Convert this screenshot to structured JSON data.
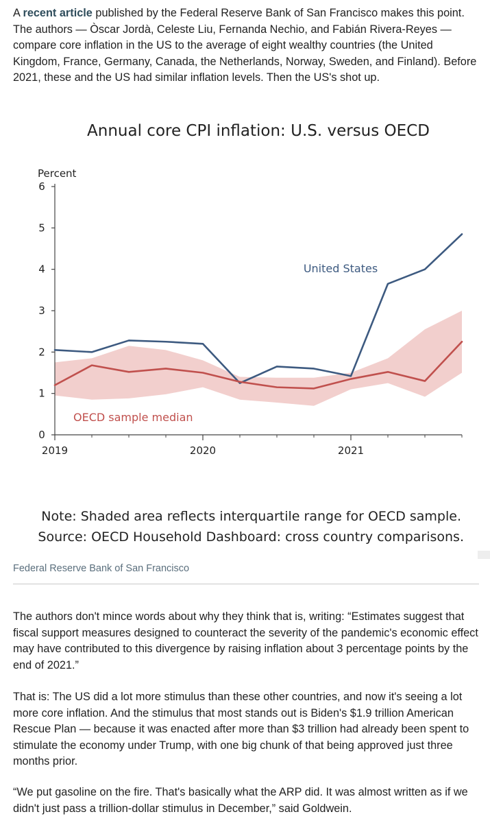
{
  "article": {
    "intro_prefix": "A ",
    "intro_link": "recent article",
    "intro_rest": " published by the Federal Reserve Bank of San Francisco makes this point. The authors — Òscar Jordà, Celeste Liu, Fernanda Nechio, and Fabián Rivera-Reyes — compare core inflation in the US to the average of eight wealthy countries (the United Kingdom, France, Germany, Canada, the Netherlands, Norway, Sweden, and Finland). Before 2021, these and the US had similar inflation levels. Then the US's shot up.",
    "para2": "The authors don't mince words about why they think that is, writing: “Estimates suggest that fiscal support measures designed to counteract the severity of the pandemic's economic effect may have contributed to this divergence by raising inflation about 3 percentage points by the end of 2021.”",
    "para3": "That is: The US did a lot more stimulus than these other countries, and now it's seeing a lot more core inflation. And the stimulus that most stands out is Biden's $1.9 trillion American Rescue Plan — because it was enacted after more than $3 trillion had already been spent to stimulate the economy under Trump, with one big chunk of that being approved just three months prior.",
    "para4": "“We put gasoline on the fire. That's basically what the ARP did. It was almost written as if we didn't just pass a trillion-dollar stimulus in December,” said Goldwein."
  },
  "figure": {
    "note": "Note: Shaded area reflects interquartile range for OECD sample.",
    "source": "Source: OECD Household Dashboard: cross country comparisons.",
    "credit": "Federal Reserve Bank of San Francisco"
  },
  "colors": {
    "us_line": "#3d5a80",
    "oecd_line": "#c0504d",
    "band": "#f2cfcd",
    "link": "#2f4d5c"
  },
  "chart_data": {
    "type": "line",
    "title": "Annual core CPI inflation: U.S. versus OECD",
    "ylabel": "Percent",
    "xlabel": "",
    "xlim": [
      2019.0,
      2021.75
    ],
    "ylim": [
      0,
      6
    ],
    "y_ticks": [
      "0",
      "1",
      "2",
      "3",
      "4",
      "5",
      "6"
    ],
    "x_ticks": [
      {
        "label": "2019",
        "value": 2019.0
      },
      {
        "label": "2020",
        "value": 2020.0
      },
      {
        "label": "2021",
        "value": 2021.0
      }
    ],
    "x": [
      2019.0,
      2019.25,
      2019.5,
      2019.75,
      2020.0,
      2020.25,
      2020.5,
      2020.75,
      2021.0,
      2021.25,
      2021.5,
      2021.75
    ],
    "series": [
      {
        "name": "United States",
        "label": "United States",
        "values": [
          2.05,
          2.0,
          2.28,
          2.25,
          2.2,
          1.25,
          1.65,
          1.6,
          1.42,
          3.65,
          4.0,
          4.85
        ]
      },
      {
        "name": "OECD sample median",
        "label": "OECD sample median",
        "values": [
          1.2,
          1.68,
          1.52,
          1.6,
          1.5,
          1.28,
          1.15,
          1.12,
          1.35,
          1.52,
          1.3,
          2.25
        ]
      }
    ],
    "band": {
      "name": "Interquartile range for OECD sample",
      "upper": [
        1.75,
        1.85,
        2.15,
        2.05,
        1.8,
        1.4,
        1.38,
        1.38,
        1.5,
        1.85,
        2.55,
        3.0
      ],
      "lower": [
        0.95,
        0.85,
        0.88,
        0.98,
        1.15,
        0.85,
        0.78,
        0.7,
        1.1,
        1.25,
        0.92,
        1.5
      ]
    }
  }
}
